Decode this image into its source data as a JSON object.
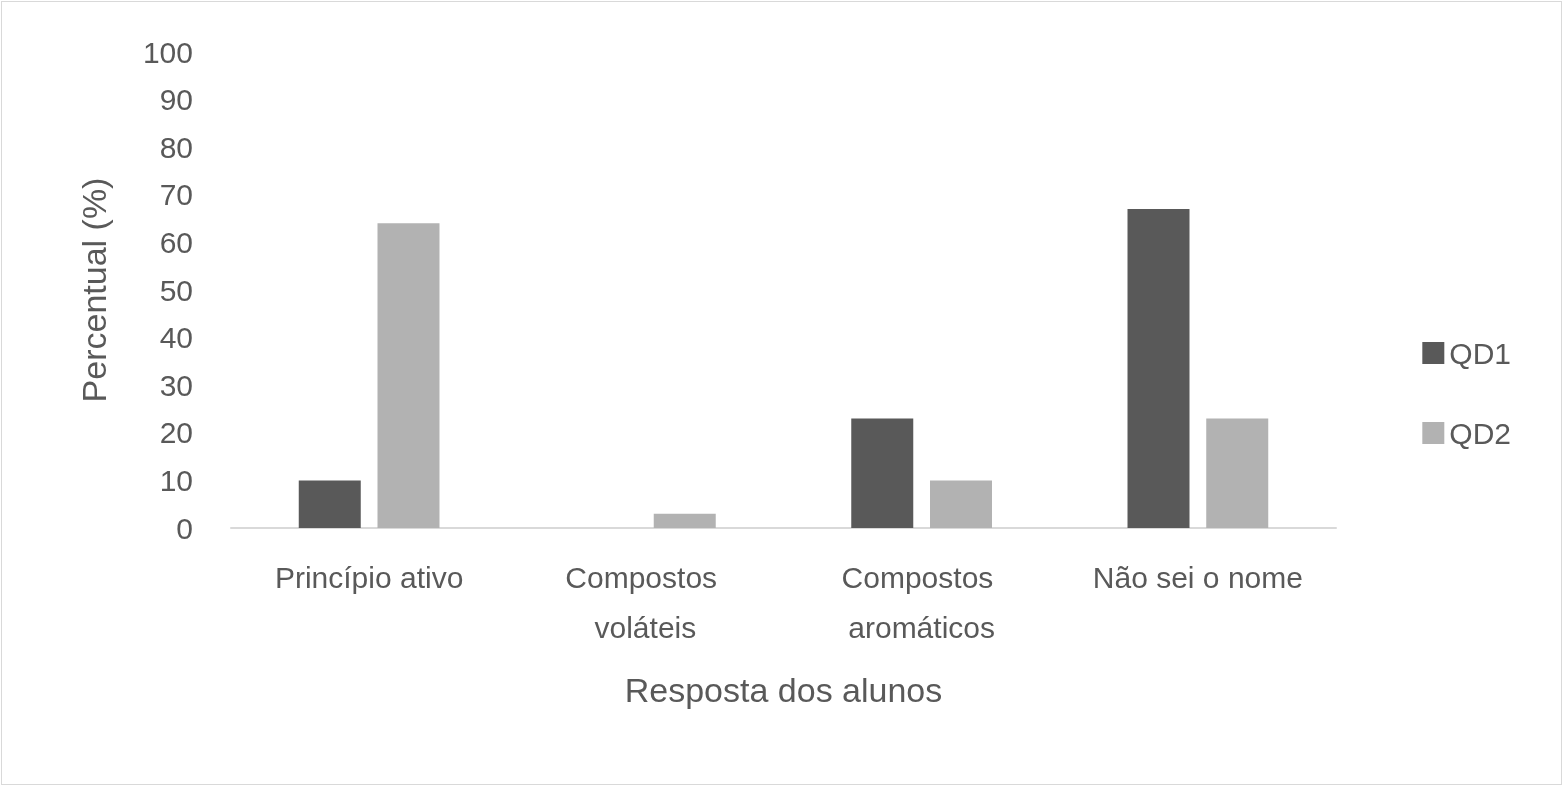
{
  "chart_data": {
    "type": "bar",
    "xlabel": "Resposta dos alunos",
    "ylabel": "Percentual (%)",
    "categories": [
      "Princípio ativo",
      "Compostos voláteis",
      "Compostos aromáticos",
      "Não sei o nome"
    ],
    "series": [
      {
        "name": "QD1",
        "color": "#595959",
        "values": [
          10,
          0,
          23,
          67
        ]
      },
      {
        "name": "QD2",
        "color": "#b2b2b2",
        "values": [
          64,
          3,
          10,
          23
        ]
      }
    ],
    "ylim": [
      0,
      100
    ],
    "yticks": [
      0,
      10,
      20,
      30,
      40,
      50,
      60,
      70,
      80,
      90,
      100
    ],
    "grid": false,
    "legend": "right"
  }
}
